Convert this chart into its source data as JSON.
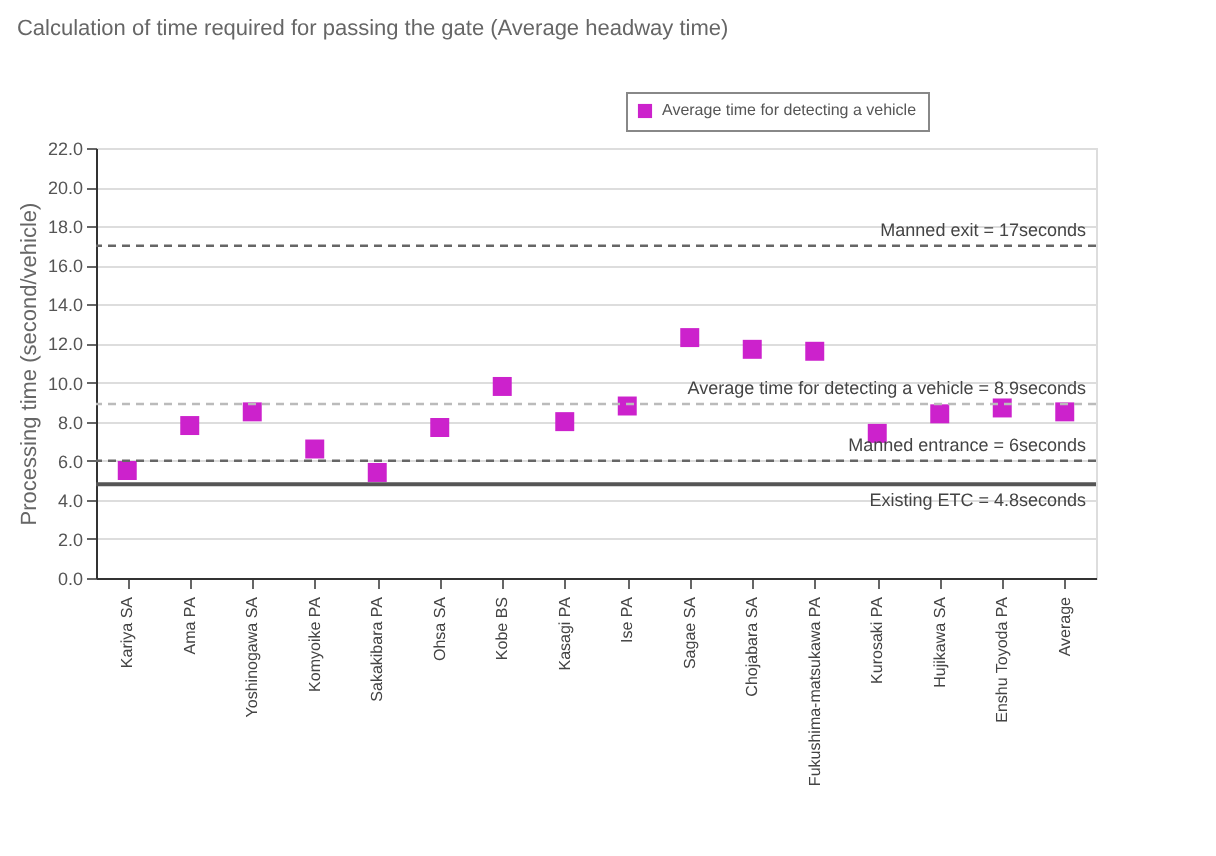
{
  "chart_data": {
    "type": "scatter",
    "title": "Calculation of time required for passing the gate (Average headway time)",
    "ylabel": "Processing time (second/vehicle)",
    "categories": [
      "Kariya SA",
      "Ama PA",
      "Yoshinogawa SA",
      "Komyoike PA",
      "Sakakibara PA",
      "Ohsa SA",
      "Kobe BS",
      "Kasagi PA",
      "Ise PA",
      "Sagae SA",
      "Chojabara SA",
      "Fukushima-matsukawa PA",
      "Kurosaki PA",
      "Hujikawa SA",
      "Enshu Toyoda PA",
      "Average"
    ],
    "series": [
      {
        "name": "Average time for detecting a vehicle",
        "color": "#cc22cc",
        "values": [
          5.5,
          7.8,
          8.5,
          6.6,
          5.4,
          7.7,
          9.8,
          8.0,
          8.8,
          12.3,
          11.7,
          11.6,
          7.4,
          8.4,
          8.7,
          8.5
        ]
      }
    ],
    "ylim": [
      0,
      22
    ],
    "yticks": [
      {
        "value": 0,
        "label": "0.0"
      },
      {
        "value": 2,
        "label": "2.0"
      },
      {
        "value": 4,
        "label": "4.0"
      },
      {
        "value": 6,
        "label": "6.0"
      },
      {
        "value": 8,
        "label": "8.0"
      },
      {
        "value": 10,
        "label": "10.0"
      },
      {
        "value": 12,
        "label": "12.0"
      },
      {
        "value": 14,
        "label": "14.0"
      },
      {
        "value": 16,
        "label": "16.0"
      },
      {
        "value": 18,
        "label": "18.0"
      },
      {
        "value": 20,
        "label": "20.0"
      },
      {
        "value": 22,
        "label": "22.0"
      }
    ],
    "ref_lines": [
      {
        "axis": "y",
        "value": 17,
        "label": "Manned exit = 17seconds",
        "line_style": "dashed",
        "color": "#666666"
      },
      {
        "axis": "y",
        "value": 8.9,
        "label": "Average time for detecting a vehicle = 8.9seconds",
        "line_style": "dashed",
        "color": "#bbbbbb"
      },
      {
        "axis": "y",
        "value": 6,
        "label": "Manned entrance = 6seconds",
        "line_style": "dashed",
        "color": "#666666"
      },
      {
        "axis": "y",
        "value": 4.8,
        "label": "Existing ETC = 4.8seconds",
        "line_style": "solid",
        "color": "#555555"
      }
    ],
    "grid": "y",
    "legend": "top right",
    "marker": "square"
  }
}
